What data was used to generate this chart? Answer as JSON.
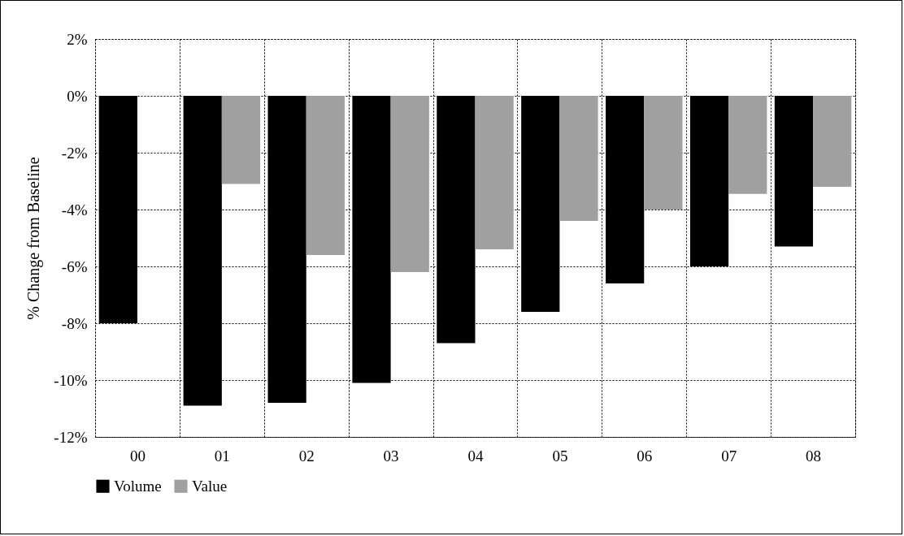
{
  "chart_data": {
    "type": "bar",
    "ylabel": "% Change from Baseline",
    "categories": [
      "00",
      "01",
      "02",
      "03",
      "04",
      "05",
      "06",
      "07",
      "08"
    ],
    "series": [
      {
        "name": "Volume",
        "color": "#000000",
        "values": [
          -8.0,
          -10.9,
          -10.8,
          -10.1,
          -8.7,
          -7.6,
          -6.6,
          -6.0,
          -5.3
        ]
      },
      {
        "name": "Value",
        "color": "#a0a0a0",
        "values": [
          0,
          -3.1,
          -5.6,
          -6.2,
          -5.4,
          -4.4,
          -4.0,
          -3.45,
          -3.2
        ]
      }
    ],
    "ylim": [
      -12,
      2
    ],
    "yticks": [
      {
        "value": -12,
        "label": "-12%"
      },
      {
        "value": -10,
        "label": "-10%"
      },
      {
        "value": -8,
        "label": "-8%"
      },
      {
        "value": -6,
        "label": "-6%"
      },
      {
        "value": -4,
        "label": "-4%"
      },
      {
        "value": -2,
        "label": "-2%"
      },
      {
        "value": 0,
        "label": "0%"
      },
      {
        "value": 2,
        "label": "2%"
      }
    ],
    "grid": true,
    "legend": "bottom"
  }
}
